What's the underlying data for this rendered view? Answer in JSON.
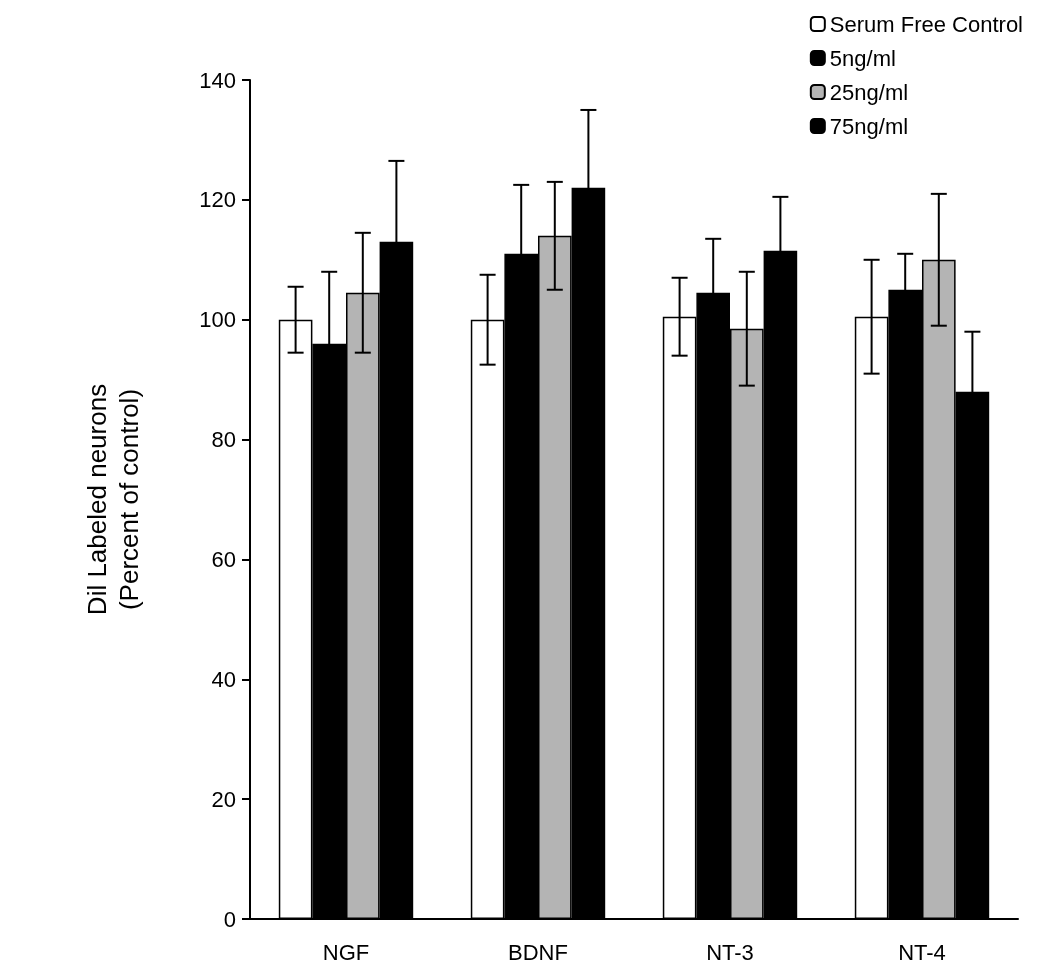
{
  "chart_data": {
    "type": "bar",
    "ylabel": "Dil Labeled neurons\n(Percent of control)",
    "categories": [
      "NGF",
      "BDNF",
      "NT-3",
      "NT-4"
    ],
    "series": [
      {
        "name": "Serum Free Control",
        "color": "#ffffff",
        "values": [
          100,
          100,
          100.5,
          100.5
        ],
        "errors": [
          5.5,
          7.5,
          6.5,
          9.5
        ]
      },
      {
        "name": "5ng/ml",
        "color": "#000000",
        "values": [
          96,
          111,
          104.5,
          105
        ],
        "errors": [
          12,
          11.5,
          9,
          6
        ]
      },
      {
        "name": "25ng/ml",
        "color": "#b4b4b4",
        "values": [
          104.5,
          114,
          98.5,
          110
        ],
        "errors": [
          10,
          9,
          9.5,
          11
        ]
      },
      {
        "name": "75ng/ml",
        "color": "#000000",
        "values": [
          113,
          122,
          111.5,
          88
        ],
        "errors": [
          13.5,
          13,
          9,
          10
        ]
      }
    ],
    "ylim": [
      0,
      140
    ],
    "yticks": [
      0,
      20,
      40,
      60,
      80,
      100,
      120,
      140
    ],
    "grid": false,
    "legend": "top right"
  }
}
